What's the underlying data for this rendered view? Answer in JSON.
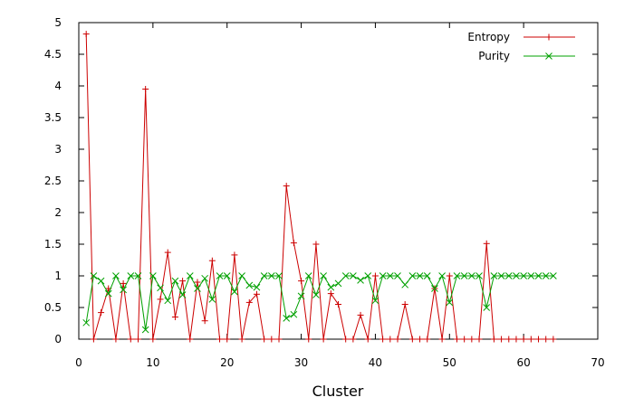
{
  "chart_data": {
    "type": "line",
    "title": "",
    "xlabel": "Cluster",
    "ylabel": "",
    "xlim": [
      0,
      70
    ],
    "ylim": [
      0,
      5
    ],
    "xticks": [
      0,
      10,
      20,
      30,
      40,
      50,
      60,
      70
    ],
    "yticks": [
      0,
      0.5,
      1,
      1.5,
      2,
      2.5,
      3,
      3.5,
      4,
      4.5,
      5
    ],
    "xtick_labels": [
      "0",
      "10",
      "20",
      "30",
      "40",
      "50",
      "60",
      "70"
    ],
    "ytick_labels": [
      "0",
      "0.5",
      "1",
      "1.5",
      "2",
      "2.5",
      "3",
      "3.5",
      "4",
      "4.5",
      "5"
    ],
    "grid": false,
    "legend_position": "top-right",
    "x": [
      1,
      2,
      3,
      4,
      5,
      6,
      7,
      8,
      9,
      10,
      11,
      12,
      13,
      14,
      15,
      16,
      17,
      18,
      19,
      20,
      21,
      22,
      23,
      24,
      25,
      26,
      27,
      28,
      29,
      30,
      31,
      32,
      33,
      34,
      35,
      36,
      37,
      38,
      39,
      40,
      41,
      42,
      43,
      44,
      45,
      46,
      47,
      48,
      49,
      50,
      51,
      52,
      53,
      54,
      55,
      56,
      57,
      58,
      59,
      60,
      61,
      62,
      63,
      64
    ],
    "series": [
      {
        "name": "Entropy",
        "color": "#cc0000",
        "marker": "plus",
        "values": [
          4.82,
          0,
          0.42,
          0.8,
          0,
          0.88,
          0,
          0,
          3.95,
          0,
          0.63,
          1.37,
          0.35,
          0.92,
          0,
          0.9,
          0.29,
          1.24,
          0,
          0,
          1.33,
          0,
          0.58,
          0.71,
          0,
          0,
          0,
          2.42,
          1.52,
          0.92,
          0,
          1.5,
          0,
          0.72,
          0.55,
          0,
          0,
          0.38,
          0,
          1.0,
          0,
          0,
          0,
          0.55,
          0,
          0,
          0,
          0.8,
          0,
          1.0,
          0,
          0,
          0,
          0,
          1.51,
          0,
          0,
          0,
          0,
          0,
          0,
          0,
          0,
          0
        ]
      },
      {
        "name": "Purity",
        "color": "#00a000",
        "marker": "x",
        "values": [
          0.26,
          1.0,
          0.92,
          0.72,
          1.0,
          0.78,
          1.0,
          1.0,
          0.15,
          1.0,
          0.81,
          0.61,
          0.92,
          0.7,
          1.0,
          0.8,
          0.96,
          0.63,
          1.0,
          1.0,
          0.75,
          1.0,
          0.85,
          0.82,
          1.0,
          1.0,
          1.0,
          0.33,
          0.39,
          0.68,
          1.0,
          0.7,
          1.0,
          0.82,
          0.88,
          1.0,
          1.0,
          0.93,
          1.0,
          0.61,
          1.0,
          1.0,
          1.0,
          0.86,
          1.0,
          1.0,
          1.0,
          0.8,
          1.0,
          0.58,
          1.0,
          1.0,
          1.0,
          1.0,
          0.5,
          1.0,
          1.0,
          1.0,
          1.0,
          1.0,
          1.0,
          1.0,
          1.0,
          1.0
        ]
      }
    ]
  }
}
